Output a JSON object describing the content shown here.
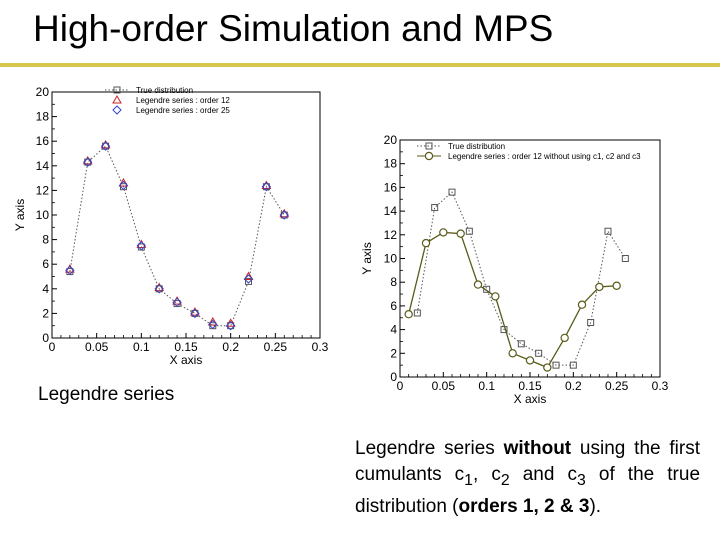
{
  "title": "High-order Simulation and MPS",
  "captions": {
    "left": "Legendre series",
    "right": {
      "p1": "Legendre series ",
      "b1": "without",
      "p2": " using the first cumulants c",
      "s1": "1",
      "p3": ", c",
      "s2": "2",
      "p4": " and c",
      "s3": "3",
      "p5": " of  the true distribution (",
      "b2": "orders 1, 2 & 3",
      "p6": ")."
    }
  },
  "chart_data": [
    {
      "type": "scatter",
      "xlabel": "X axis",
      "ylabel": "Y axis",
      "xlim": [
        0,
        0.3
      ],
      "ylim": [
        0,
        20
      ],
      "xticks": [
        "0",
        "0.05",
        "0.1",
        "0.15",
        "0.2",
        "0.25",
        "0.3"
      ],
      "yticks": [
        "0",
        "2",
        "4",
        "6",
        "8",
        "10",
        "12",
        "14",
        "16",
        "18",
        "20"
      ],
      "legend_position": "top-left",
      "series": [
        {
          "name": "True distribution",
          "marker": "square",
          "line": "dotted",
          "color": "#555555",
          "x": [
            0.02,
            0.04,
            0.06,
            0.08,
            0.1,
            0.12,
            0.14,
            0.16,
            0.18,
            0.2,
            0.22,
            0.24,
            0.26
          ],
          "y": [
            5.4,
            14.3,
            15.6,
            12.3,
            7.4,
            4.0,
            2.8,
            2.0,
            1.0,
            1.0,
            4.6,
            12.3,
            10.0
          ]
        },
        {
          "name": "Legendre series : order 12",
          "marker": "triangle",
          "line": "none",
          "color": "#cc2222",
          "x": [
            0.02,
            0.04,
            0.06,
            0.08,
            0.1,
            0.12,
            0.14,
            0.16,
            0.18,
            0.2,
            0.22,
            0.24,
            0.26
          ],
          "y": [
            5.6,
            14.4,
            15.7,
            12.6,
            7.6,
            4.1,
            3.0,
            2.1,
            1.3,
            1.2,
            5.0,
            12.4,
            10.1
          ]
        },
        {
          "name": "Legendre series : order 25",
          "marker": "diamond",
          "line": "none",
          "color": "#3344cc",
          "x": [
            0.02,
            0.04,
            0.06,
            0.08,
            0.1,
            0.12,
            0.14,
            0.16,
            0.18,
            0.2,
            0.22,
            0.24,
            0.26
          ],
          "y": [
            5.5,
            14.3,
            15.6,
            12.4,
            7.5,
            4.0,
            2.9,
            2.0,
            1.1,
            1.0,
            4.8,
            12.3,
            10.0
          ]
        }
      ]
    },
    {
      "type": "line",
      "xlabel": "X axis",
      "ylabel": "Y axis",
      "xlim": [
        0,
        0.3
      ],
      "ylim": [
        0,
        20
      ],
      "xticks": [
        "0",
        "0.05",
        "0.1",
        "0.15",
        "0.2",
        "0.25",
        "0.3"
      ],
      "yticks": [
        "0",
        "2",
        "4",
        "6",
        "8",
        "10",
        "12",
        "14",
        "16",
        "18",
        "20"
      ],
      "legend_position": "top-left",
      "series": [
        {
          "name": "True distribution",
          "marker": "square",
          "line": "dotted",
          "color": "#555555",
          "x": [
            0.02,
            0.04,
            0.06,
            0.08,
            0.1,
            0.12,
            0.14,
            0.16,
            0.18,
            0.2,
            0.22,
            0.24,
            0.26
          ],
          "y": [
            5.4,
            14.3,
            15.6,
            12.3,
            7.4,
            4.0,
            2.8,
            2.0,
            1.0,
            1.0,
            4.6,
            12.3,
            10.0
          ]
        },
        {
          "name": "Legendre series : order 12 without using c1, c2 and c3",
          "marker": "circle",
          "line": "solid",
          "color": "#5a5a1a",
          "x": [
            0.01,
            0.03,
            0.05,
            0.07,
            0.09,
            0.11,
            0.13,
            0.15,
            0.17,
            0.19,
            0.21,
            0.23,
            0.25
          ],
          "y": [
            5.3,
            11.3,
            12.2,
            12.1,
            7.8,
            6.8,
            2.0,
            1.4,
            0.8,
            3.3,
            6.1,
            7.6,
            7.7
          ]
        }
      ]
    }
  ]
}
